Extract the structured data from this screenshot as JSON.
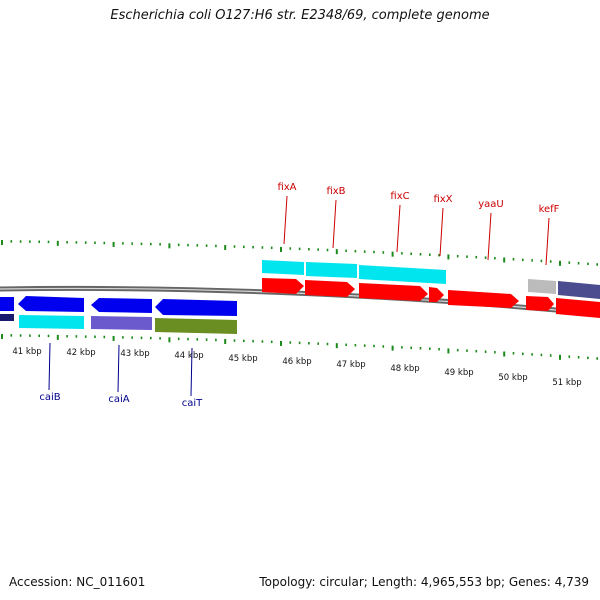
{
  "title": "Escherichia coli O127:H6 str. E2348/69, complete genome",
  "footer": {
    "accession": "Accession: NC_011601",
    "topology": "Topology: circular; Length: 4,965,553 bp; Genes: 4,739"
  },
  "ruler_labels": [
    "41 kbp",
    "42 kbp",
    "43 kbp",
    "44 kbp",
    "45 kbp",
    "46 kbp",
    "47 kbp",
    "48 kbp",
    "49 kbp",
    "50 kbp",
    "51 kbp"
  ],
  "top_genes": [
    "fixA",
    "fixB",
    "fixC",
    "fixX",
    "yaaU",
    "kefF"
  ],
  "bottom_genes": [
    "caiB",
    "caiA",
    "caiT"
  ],
  "colors": {
    "plus_strand_label": "#cc0000",
    "minus_strand_label": "#00008b",
    "plus_cds": "#ff0000",
    "minus_cds": "#0000ee",
    "cyan_feature": "#00e5ee",
    "slate_feature": "#6a5acd",
    "olive_feature": "#6b8e23",
    "grey_feature": "#bbbbbb",
    "tick": "#1a8a1a",
    "backbone": "#777777"
  }
}
